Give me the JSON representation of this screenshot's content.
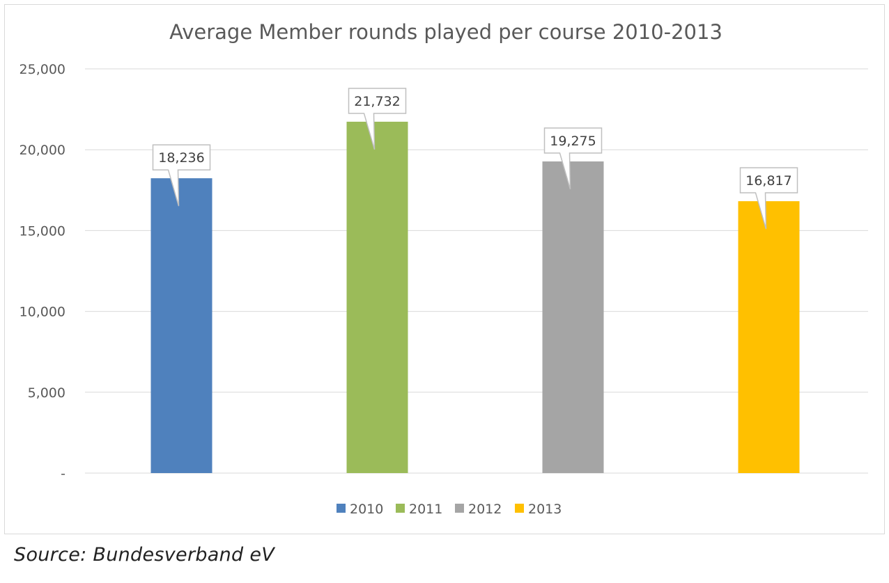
{
  "chart_data": {
    "type": "bar",
    "title": "Average Member rounds played per course 2010-2013",
    "categories": [
      "2010",
      "2011",
      "2012",
      "2013"
    ],
    "values": [
      18236,
      21732,
      19275,
      16817
    ],
    "data_labels": [
      "18,236",
      "21,732",
      "19,275",
      "16,817"
    ],
    "colors": [
      "#4f81bd",
      "#9bbb59",
      "#a5a5a5",
      "#ffc000"
    ],
    "ylim": [
      0,
      25000
    ],
    "yticks": [
      0,
      5000,
      10000,
      15000,
      20000,
      25000
    ],
    "ytick_labels": [
      "-",
      "5,000",
      "10,000",
      "15,000",
      "20,000",
      "25,000"
    ],
    "grid": true,
    "legend": "bottom",
    "legend_entries": [
      "2010",
      "2011",
      "2012",
      "2013"
    ],
    "xlabel": "",
    "ylabel": ""
  },
  "source_note": "Source: Bundesverband eV"
}
